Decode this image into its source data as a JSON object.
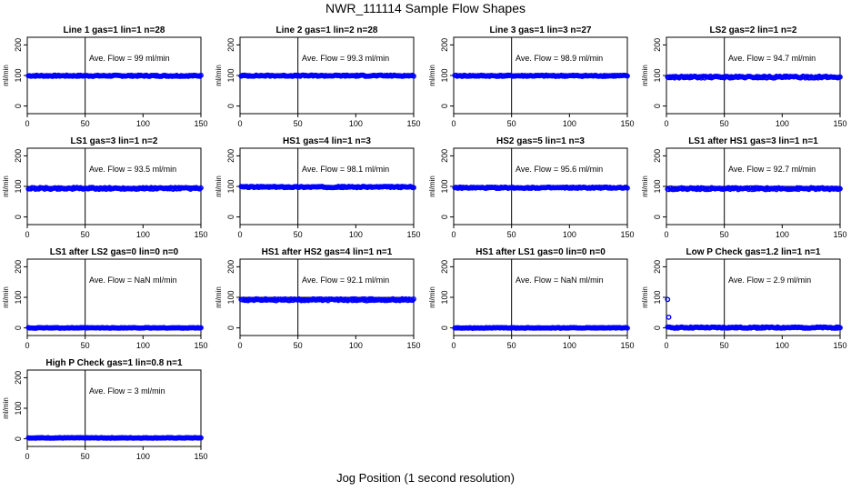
{
  "page": {
    "title": "NWR_111114  Sample Flow Shapes",
    "xlabel": "Jog Position (1 second resolution)"
  },
  "chart_data": [
    {
      "type": "scatter",
      "title": "Line 1 gas=1 lin=1 n=28",
      "annotation": "Ave. Flow = 99  ml/min",
      "ylabel": "ml/min",
      "xlim": [
        0,
        150
      ],
      "ylim": [
        -25,
        225
      ],
      "xticks": [
        0,
        50,
        100,
        150
      ],
      "yticks": [
        0,
        100,
        200
      ],
      "vline": 50,
      "hline": 100,
      "series": [
        {
          "name": "",
          "color": "#0000ff",
          "pattern": "flat",
          "level": 99,
          "jitter": 2
        }
      ]
    },
    {
      "type": "scatter",
      "title": "Line 2 gas=1 lin=2 n=28",
      "annotation": "Ave. Flow = 99.3  ml/min",
      "ylabel": "ml/min",
      "xlim": [
        0,
        150
      ],
      "ylim": [
        -25,
        225
      ],
      "xticks": [
        0,
        50,
        100,
        150
      ],
      "yticks": [
        0,
        100,
        200
      ],
      "vline": 50,
      "hline": 100,
      "series": [
        {
          "name": "",
          "color": "#0000ff",
          "pattern": "flat",
          "level": 99.3,
          "jitter": 2
        }
      ]
    },
    {
      "type": "scatter",
      "title": "Line 3 gas=1 lin=3 n=27",
      "annotation": "Ave. Flow = 98.9  ml/min",
      "ylabel": "ml/min",
      "xlim": [
        0,
        150
      ],
      "ylim": [
        -25,
        225
      ],
      "xticks": [
        0,
        50,
        100,
        150
      ],
      "yticks": [
        0,
        100,
        200
      ],
      "vline": 50,
      "hline": 100,
      "series": [
        {
          "name": "",
          "color": "#0000ff",
          "pattern": "flat",
          "level": 98.9,
          "jitter": 2
        }
      ]
    },
    {
      "type": "scatter",
      "title": "LS2 gas=2 lin=1 n=2",
      "annotation": "Ave. Flow = 94.7  ml/min",
      "ylabel": "ml/min",
      "xlim": [
        0,
        150
      ],
      "ylim": [
        -25,
        225
      ],
      "xticks": [
        0,
        50,
        100,
        150
      ],
      "yticks": [
        0,
        100,
        200
      ],
      "vline": 50,
      "hline": 100,
      "series": [
        {
          "name": "",
          "color": "#0000ff",
          "pattern": "flat",
          "level": 94.7,
          "jitter": 3
        }
      ]
    },
    {
      "type": "scatter",
      "title": "LS1 gas=3 lin=1 n=2",
      "annotation": "Ave. Flow = 93.5  ml/min",
      "ylabel": "ml/min",
      "xlim": [
        0,
        150
      ],
      "ylim": [
        -25,
        225
      ],
      "xticks": [
        0,
        50,
        100,
        150
      ],
      "yticks": [
        0,
        100,
        200
      ],
      "vline": 50,
      "hline": 100,
      "series": [
        {
          "name": "",
          "color": "#0000ff",
          "pattern": "flat",
          "level": 93.5,
          "jitter": 3
        }
      ]
    },
    {
      "type": "scatter",
      "title": "HS1 gas=4 lin=1 n=3",
      "annotation": "Ave. Flow = 98.1  ml/min",
      "ylabel": "ml/min",
      "xlim": [
        0,
        150
      ],
      "ylim": [
        -25,
        225
      ],
      "xticks": [
        0,
        50,
        100,
        150
      ],
      "yticks": [
        0,
        100,
        200
      ],
      "vline": 50,
      "hline": 100,
      "series": [
        {
          "name": "",
          "color": "#0000ff",
          "pattern": "flat",
          "level": 98.1,
          "jitter": 2
        }
      ]
    },
    {
      "type": "scatter",
      "title": "HS2 gas=5 lin=1 n=3",
      "annotation": "Ave. Flow = 95.6  ml/min",
      "ylabel": "ml/min",
      "xlim": [
        0,
        150
      ],
      "ylim": [
        -25,
        225
      ],
      "xticks": [
        0,
        50,
        100,
        150
      ],
      "yticks": [
        0,
        100,
        200
      ],
      "vline": 50,
      "hline": 100,
      "series": [
        {
          "name": "",
          "color": "#0000ff",
          "pattern": "flat",
          "level": 95.6,
          "jitter": 2
        }
      ]
    },
    {
      "type": "scatter",
      "title": "LS1 after HS1 gas=3 lin=1 n=1",
      "annotation": "Ave. Flow = 92.7  ml/min",
      "ylabel": "ml/min",
      "xlim": [
        0,
        150
      ],
      "ylim": [
        -25,
        225
      ],
      "xticks": [
        0,
        50,
        100,
        150
      ],
      "yticks": [
        0,
        100,
        200
      ],
      "vline": 50,
      "hline": 100,
      "series": [
        {
          "name": "",
          "color": "#0000ff",
          "pattern": "flat",
          "level": 92.7,
          "jitter": 3
        }
      ]
    },
    {
      "type": "scatter",
      "title": "LS1 after LS2 gas=0 lin=0 n=0",
      "annotation": "Ave. Flow = NaN  ml/min",
      "ylabel": "ml/min",
      "xlim": [
        0,
        150
      ],
      "ylim": [
        -25,
        225
      ],
      "xticks": [
        0,
        50,
        100,
        150
      ],
      "yticks": [
        0,
        100,
        200
      ],
      "vline": 50,
      "hline": 0,
      "series": [
        {
          "name": "",
          "color": "#0000ff",
          "pattern": "flat",
          "level": 0,
          "jitter": 1
        }
      ]
    },
    {
      "type": "scatter",
      "title": "HS1 after HS2 gas=4 lin=1 n=1",
      "annotation": "Ave. Flow = 92.1  ml/min",
      "ylabel": "ml/min",
      "xlim": [
        0,
        150
      ],
      "ylim": [
        -25,
        225
      ],
      "xticks": [
        0,
        50,
        100,
        150
      ],
      "yticks": [
        0,
        100,
        200
      ],
      "vline": 50,
      "hline": 100,
      "series": [
        {
          "name": "",
          "color": "#0000ff",
          "pattern": "flat",
          "level": 92.1,
          "jitter": 3
        }
      ]
    },
    {
      "type": "scatter",
      "title": "HS1 after LS1 gas=0 lin=0 n=0",
      "annotation": "Ave. Flow = NaN  ml/min",
      "ylabel": "ml/min",
      "xlim": [
        0,
        150
      ],
      "ylim": [
        -25,
        225
      ],
      "xticks": [
        0,
        50,
        100,
        150
      ],
      "yticks": [
        0,
        100,
        200
      ],
      "vline": 50,
      "hline": 0,
      "series": [
        {
          "name": "",
          "color": "#0000ff",
          "pattern": "flat",
          "level": 0,
          "jitter": 1
        }
      ]
    },
    {
      "type": "scatter",
      "title": "Low P Check gas=1.2 lin=1 n=1",
      "annotation": "Ave. Flow = 2.9  ml/min",
      "ylabel": "ml/min",
      "xlim": [
        0,
        150
      ],
      "ylim": [
        -25,
        225
      ],
      "xticks": [
        0,
        50,
        100,
        150
      ],
      "yticks": [
        0,
        100,
        200
      ],
      "vline": 50,
      "hline": 0,
      "series": [
        {
          "name": "",
          "color": "#0000ff",
          "pattern": "flat",
          "level": 1,
          "jitter": 2,
          "extra_points": [
            [
              1,
              93
            ],
            [
              2,
              35
            ]
          ]
        }
      ]
    },
    {
      "type": "scatter",
      "title": "High P Check gas=1 lin=0.8 n=1",
      "annotation": "Ave. Flow = 3  ml/min",
      "ylabel": "ml/min",
      "xlim": [
        0,
        150
      ],
      "ylim": [
        -25,
        225
      ],
      "xticks": [
        0,
        50,
        100,
        150
      ],
      "yticks": [
        0,
        100,
        200
      ],
      "vline": 50,
      "hline": 0,
      "series": [
        {
          "name": "",
          "color": "#0000ff",
          "pattern": "flat",
          "level": 3,
          "jitter": 1
        }
      ]
    }
  ]
}
